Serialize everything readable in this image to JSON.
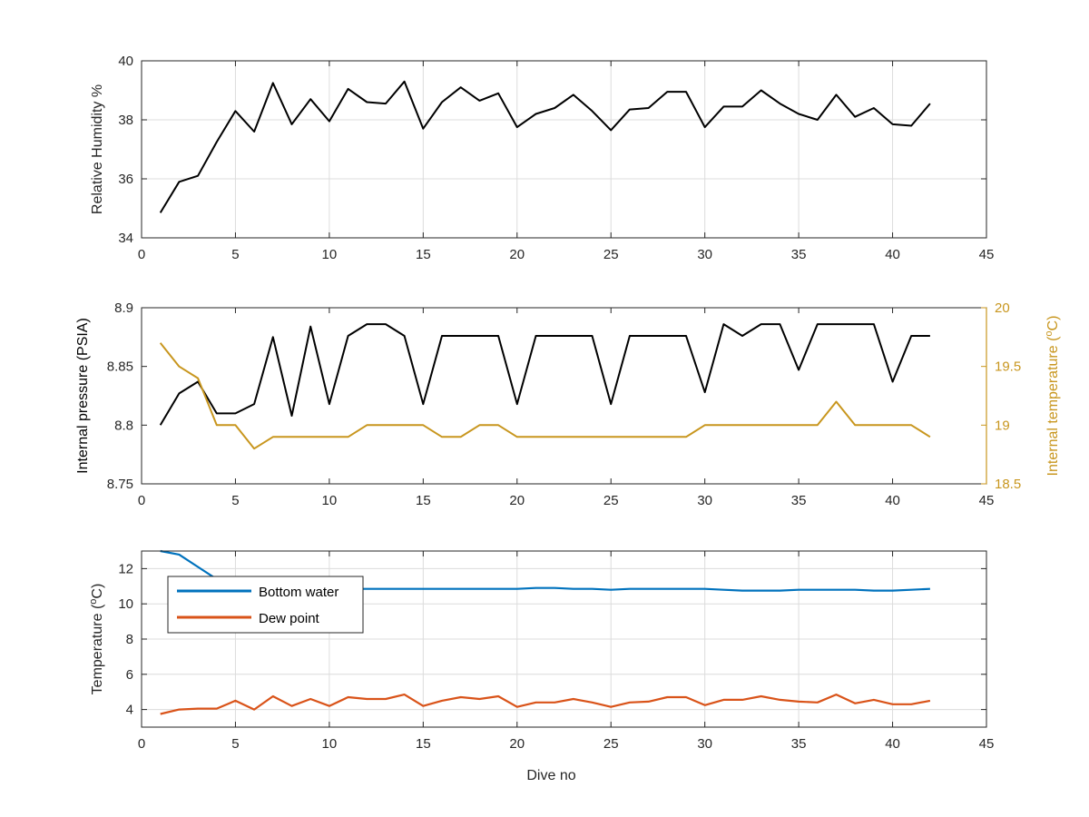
{
  "colors": {
    "pressure": "#000000",
    "internal_temperature": "#C8961E",
    "bottom_water": "#0072BD",
    "dew_point": "#D95319",
    "grid": "#DCDCDC",
    "axis": "#262626"
  },
  "chart_data": [
    {
      "type": "line",
      "xlabel": "",
      "ylabel": "Relative Humidity %",
      "xlim": [
        0,
        45
      ],
      "ylim": [
        34,
        40
      ],
      "xticks": [
        0,
        5,
        10,
        15,
        20,
        25,
        30,
        35,
        40,
        45
      ],
      "yticks": [
        34,
        36,
        38,
        40
      ],
      "grid": true,
      "series": [
        {
          "color": "#000000",
          "x": [
            1,
            2,
            3,
            4,
            5,
            6,
            7,
            8,
            9,
            10,
            11,
            12,
            13,
            14,
            15,
            16,
            17,
            18,
            19,
            20,
            21,
            22,
            23,
            24,
            25,
            26,
            27,
            28,
            29,
            30,
            31,
            32,
            33,
            34,
            35,
            36,
            37,
            38,
            39,
            40,
            41,
            42
          ],
          "values": [
            34.85,
            35.9,
            36.1,
            37.25,
            38.3,
            37.6,
            39.25,
            37.85,
            38.7,
            37.95,
            39.05,
            38.6,
            38.55,
            39.3,
            37.7,
            38.6,
            39.1,
            38.65,
            38.9,
            37.75,
            38.2,
            38.4,
            38.85,
            38.3,
            37.65,
            38.35,
            38.4,
            38.95,
            38.95,
            37.75,
            38.45,
            38.45,
            39.0,
            38.55,
            38.2,
            38.0,
            38.85,
            38.1,
            38.4,
            37.85,
            37.8,
            38.55
          ]
        }
      ]
    },
    {
      "type": "line",
      "xlabel": "",
      "ylabel": "Internal pressure (PSIA)",
      "ylabel_right": "Internal temperature (°C)",
      "xlim": [
        0,
        45
      ],
      "ylim": [
        8.75,
        8.9
      ],
      "ylim_right": [
        18.5,
        20
      ],
      "xticks": [
        0,
        5,
        10,
        15,
        20,
        25,
        30,
        35,
        40,
        45
      ],
      "yticks": [
        8.75,
        8.8,
        8.85,
        8.9
      ],
      "yticks_right": [
        18.5,
        19,
        19.5,
        20
      ],
      "grid": false,
      "series": [
        {
          "axis": "left",
          "color": "#000000",
          "x": [
            1,
            2,
            3,
            4,
            5,
            6,
            7,
            8,
            9,
            10,
            11,
            12,
            13,
            14,
            15,
            16,
            17,
            18,
            19,
            20,
            21,
            22,
            23,
            24,
            25,
            26,
            27,
            28,
            29,
            30,
            31,
            32,
            33,
            34,
            35,
            36,
            37,
            38,
            39,
            40,
            41,
            42
          ],
          "values": [
            8.8,
            8.827,
            8.837,
            8.81,
            8.81,
            8.818,
            8.875,
            8.808,
            8.884,
            8.818,
            8.876,
            8.886,
            8.886,
            8.876,
            8.818,
            8.876,
            8.876,
            8.876,
            8.876,
            8.818,
            8.876,
            8.876,
            8.876,
            8.876,
            8.818,
            8.876,
            8.876,
            8.876,
            8.876,
            8.828,
            8.886,
            8.876,
            8.886,
            8.886,
            8.847,
            8.886,
            8.886,
            8.886,
            8.886,
            8.837,
            8.876,
            8.876
          ]
        },
        {
          "axis": "right",
          "color": "#C8961E",
          "x": [
            1,
            2,
            3,
            4,
            5,
            6,
            7,
            8,
            9,
            10,
            11,
            12,
            13,
            14,
            15,
            16,
            17,
            18,
            19,
            20,
            21,
            22,
            23,
            24,
            25,
            26,
            27,
            28,
            29,
            30,
            31,
            32,
            33,
            34,
            35,
            36,
            37,
            38,
            39,
            40,
            41,
            42
          ],
          "values": [
            19.7,
            19.5,
            19.4,
            19.0,
            19.0,
            18.8,
            18.9,
            18.9,
            18.9,
            18.9,
            18.9,
            19.0,
            19.0,
            19.0,
            19.0,
            18.9,
            18.9,
            19.0,
            19.0,
            18.9,
            18.9,
            18.9,
            18.9,
            18.9,
            18.9,
            18.9,
            18.9,
            18.9,
            18.9,
            19.0,
            19.0,
            19.0,
            19.0,
            19.0,
            19.0,
            19.0,
            19.2,
            19.0,
            19.0,
            19.0,
            19.0,
            18.9
          ]
        }
      ]
    },
    {
      "type": "line",
      "xlabel": "Dive no",
      "ylabel": "Temperature (°C)",
      "xlim": [
        0,
        45
      ],
      "ylim": [
        3,
        13
      ],
      "xticks": [
        0,
        5,
        10,
        15,
        20,
        25,
        30,
        35,
        40,
        45
      ],
      "yticks": [
        4,
        6,
        8,
        10,
        12
      ],
      "grid": true,
      "legend": "top-left",
      "series": [
        {
          "name": "Bottom water",
          "color": "#0072BD",
          "x": [
            1,
            2,
            3,
            4,
            5,
            6,
            7,
            8,
            9,
            10,
            11,
            12,
            13,
            14,
            15,
            16,
            17,
            18,
            19,
            20,
            21,
            22,
            23,
            24,
            25,
            26,
            27,
            28,
            29,
            30,
            31,
            32,
            33,
            34,
            35,
            36,
            37,
            38,
            39,
            40,
            41,
            42
          ],
          "values": [
            13.0,
            12.8,
            12.1,
            11.4,
            11.2,
            11.0,
            10.9,
            10.9,
            10.85,
            10.85,
            10.85,
            10.85,
            10.85,
            10.85,
            10.85,
            10.85,
            10.85,
            10.85,
            10.85,
            10.85,
            10.9,
            10.9,
            10.85,
            10.85,
            10.8,
            10.85,
            10.85,
            10.85,
            10.85,
            10.85,
            10.8,
            10.75,
            10.75,
            10.75,
            10.8,
            10.8,
            10.8,
            10.8,
            10.75,
            10.75,
            10.8,
            10.85
          ]
        },
        {
          "name": "Dew point",
          "color": "#D95319",
          "x": [
            1,
            2,
            3,
            4,
            5,
            6,
            7,
            8,
            9,
            10,
            11,
            12,
            13,
            14,
            15,
            16,
            17,
            18,
            19,
            20,
            21,
            22,
            23,
            24,
            25,
            26,
            27,
            28,
            29,
            30,
            31,
            32,
            33,
            34,
            35,
            36,
            37,
            38,
            39,
            40,
            41,
            42
          ],
          "values": [
            3.75,
            4.0,
            4.05,
            4.05,
            4.5,
            4.0,
            4.75,
            4.2,
            4.6,
            4.2,
            4.7,
            4.6,
            4.6,
            4.85,
            4.2,
            4.5,
            4.7,
            4.6,
            4.75,
            4.15,
            4.4,
            4.4,
            4.6,
            4.4,
            4.15,
            4.4,
            4.45,
            4.7,
            4.7,
            4.25,
            4.55,
            4.55,
            4.75,
            4.55,
            4.45,
            4.4,
            4.85,
            4.35,
            4.55,
            4.3,
            4.3,
            4.5
          ]
        }
      ]
    }
  ]
}
